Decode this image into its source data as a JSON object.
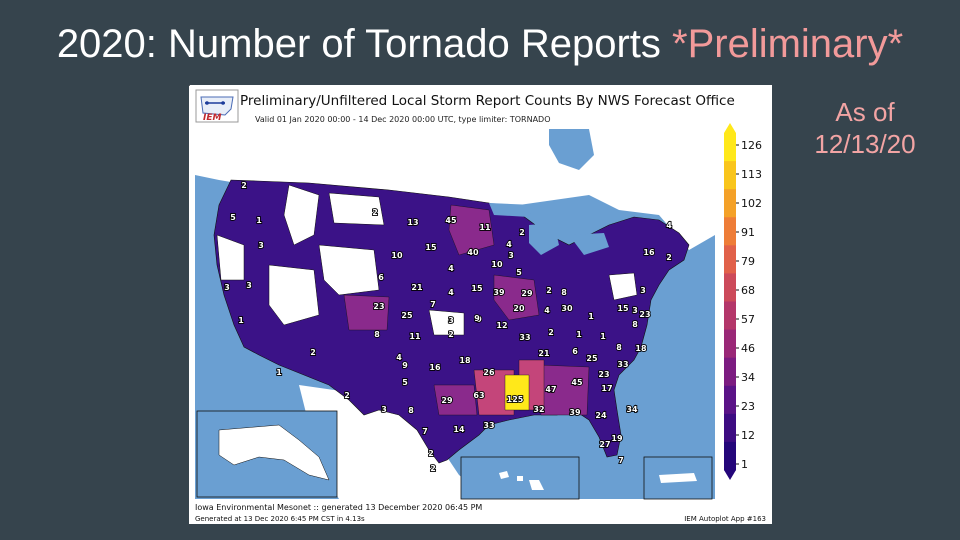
{
  "slide": {
    "title_main": "2020: Number of Tornado Reports ",
    "title_accent": "*Preliminary*",
    "asof_line1": "As of",
    "asof_line2": "12/13/20"
  },
  "map": {
    "title": "Preliminary/Unfiltered Local Storm Report Counts By NWS Forecast Office",
    "subtitle": "Valid 01 Jan 2020 00:00 - 14 Dec 2020 00:00 UTC, type limiter: TORNADO",
    "logo_text": "IEM",
    "footer_source": "Iowa Environmental Mesonet :: generated 13 December 2020 06:45 PM",
    "footer_generated": "Generated at 13 Dec 2020 6:45 PM CST in 4.13s",
    "footer_app": "IEM Autoplot App #163",
    "colorbar": {
      "ticks": [
        "126",
        "113",
        "102",
        "91",
        "79",
        "68",
        "57",
        "46",
        "34",
        "23",
        "12",
        "1"
      ],
      "colors": [
        "#ffe81a",
        "#f9c51c",
        "#f4a128",
        "#ee7d38",
        "#e1614a",
        "#cc4a5a",
        "#b4376a",
        "#9a2877",
        "#7c1c81",
        "#5a1387",
        "#3d0c82",
        "#24067a"
      ]
    },
    "colors": {
      "ocean": "#6a9fd2",
      "land": "#ffffff",
      "low": "#3b1287",
      "mid": "#5a1690",
      "midhigh": "#8a2a8c",
      "high": "#c4457a",
      "max": "#ffe81a"
    },
    "office_counts": [
      {
        "label": "2"
      },
      {
        "label": "5"
      },
      {
        "label": "1"
      },
      {
        "label": "3"
      },
      {
        "label": "3"
      },
      {
        "label": "3"
      },
      {
        "label": "1"
      },
      {
        "label": "2"
      },
      {
        "label": "13"
      },
      {
        "label": "45"
      },
      {
        "label": "11"
      },
      {
        "label": "2"
      },
      {
        "label": "4"
      },
      {
        "label": "10"
      },
      {
        "label": "15"
      },
      {
        "label": "40"
      },
      {
        "label": "3"
      },
      {
        "label": "10"
      },
      {
        "label": "5"
      },
      {
        "label": "4"
      },
      {
        "label": "6"
      },
      {
        "label": "21"
      },
      {
        "label": "4"
      },
      {
        "label": "15"
      },
      {
        "label": "39"
      },
      {
        "label": "29"
      },
      {
        "label": "2"
      },
      {
        "label": "9"
      },
      {
        "label": "8"
      },
      {
        "label": "23"
      },
      {
        "label": "25"
      },
      {
        "label": "7"
      },
      {
        "label": "3"
      },
      {
        "label": "9"
      },
      {
        "label": "20"
      },
      {
        "label": "4"
      },
      {
        "label": "30"
      },
      {
        "label": "1"
      },
      {
        "label": "15"
      },
      {
        "label": "8"
      },
      {
        "label": "11"
      },
      {
        "label": "2"
      },
      {
        "label": "12"
      },
      {
        "label": "33"
      },
      {
        "label": "2"
      },
      {
        "label": "1"
      },
      {
        "label": "1"
      },
      {
        "label": "3"
      },
      {
        "label": "2"
      },
      {
        "label": "1"
      },
      {
        "label": "4"
      },
      {
        "label": "9"
      },
      {
        "label": "5"
      },
      {
        "label": "16"
      },
      {
        "label": "18"
      },
      {
        "label": "26"
      },
      {
        "label": "21"
      },
      {
        "label": "6"
      },
      {
        "label": "25"
      },
      {
        "label": "8"
      },
      {
        "label": "18"
      },
      {
        "label": "2"
      },
      {
        "label": "3"
      },
      {
        "label": "8"
      },
      {
        "label": "29"
      },
      {
        "label": "63"
      },
      {
        "label": "125"
      },
      {
        "label": "47"
      },
      {
        "label": "45"
      },
      {
        "label": "23"
      },
      {
        "label": "33"
      },
      {
        "label": "17"
      },
      {
        "label": "7"
      },
      {
        "label": "14"
      },
      {
        "label": "33"
      },
      {
        "label": "32"
      },
      {
        "label": "39"
      },
      {
        "label": "24"
      },
      {
        "label": "2"
      },
      {
        "label": "2"
      },
      {
        "label": "19"
      },
      {
        "label": "27"
      },
      {
        "label": "7"
      },
      {
        "label": "4"
      },
      {
        "label": "16"
      },
      {
        "label": "2"
      },
      {
        "label": "3"
      },
      {
        "label": "23"
      },
      {
        "label": "8"
      },
      {
        "label": "34"
      },
      {
        "label": "7"
      }
    ]
  }
}
